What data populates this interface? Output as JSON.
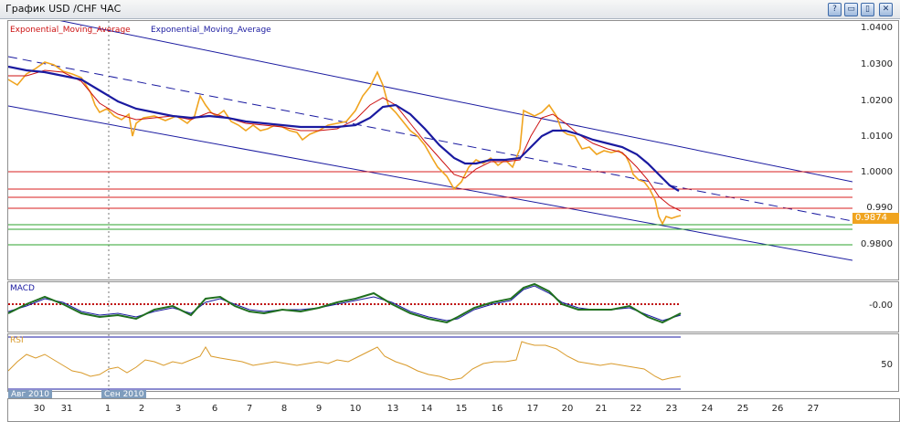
{
  "window": {
    "title": "График USD /CHF  ЧАС",
    "buttons": [
      "?",
      "▭",
      "▯",
      "✕"
    ]
  },
  "legend": {
    "ma1_label": "Exponential_Moving_Average",
    "ma2_label": "Exponential_Moving_Average",
    "ma1_color": "#cc1111",
    "ma2_color": "#1a1aa0"
  },
  "price_axis": {
    "ticks": [
      "1.0400",
      "1.0300",
      "1.0200",
      "1.0100",
      "1.0000",
      "0.990",
      "0.9874",
      "0.9800"
    ],
    "current_price": "0.9874",
    "current_price_color": "#f0a41f"
  },
  "macd": {
    "label": "MACD",
    "tick": "-0.00"
  },
  "rsi": {
    "label": "RSI",
    "tick": "50"
  },
  "time_axis": {
    "ticks": [
      "30",
      "31",
      "1",
      "2",
      "3",
      "6",
      "7",
      "8",
      "9",
      "10",
      "13",
      "14",
      "15",
      "16",
      "17",
      "20",
      "21",
      "22",
      "23",
      "24",
      "25",
      "26",
      "27"
    ],
    "month_tags": [
      "Авг 2010",
      "Сен 2010"
    ]
  },
  "colors": {
    "price": "#f0a41f",
    "channel": "#1a1aa0",
    "levels_red": "#d81f1f",
    "levels_green": "#2ea32e",
    "macd_line": "#1f6f1f",
    "macd_hist": "#c01010",
    "rsi": "#d99a2a"
  }
}
